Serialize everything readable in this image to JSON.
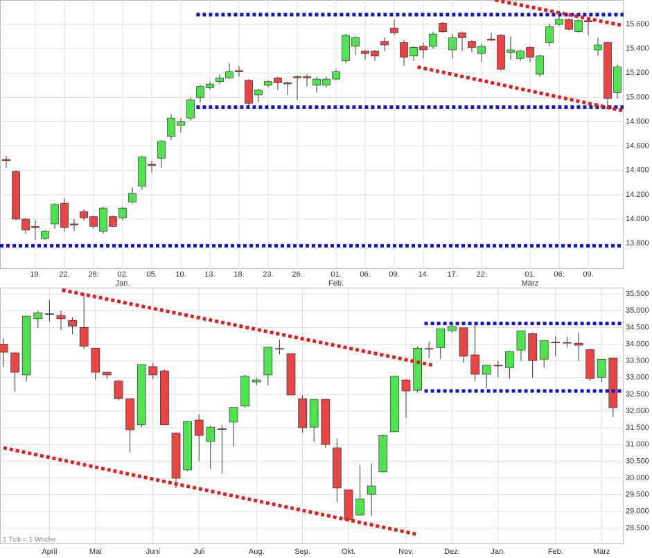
{
  "chart_data": [
    {
      "type": "candlestick",
      "categories": [
        null,
        null,
        null,
        "19.",
        null,
        null,
        "22.",
        null,
        null,
        "28.",
        null,
        null,
        "02.",
        null,
        null,
        "05.",
        null,
        null,
        "10.",
        null,
        null,
        "13.",
        null,
        null,
        "18.",
        null,
        null,
        "23.",
        null,
        null,
        "26.",
        null,
        null,
        null,
        "01.",
        null,
        null,
        "06.",
        null,
        null,
        "09.",
        null,
        null,
        "14.",
        null,
        null,
        "17.",
        null,
        null,
        "22.",
        null,
        null,
        null,
        null,
        "01.",
        null,
        null,
        "06.",
        null,
        null,
        "09.",
        null,
        null,
        null
      ],
      "month_labels": [
        {
          "index": 12,
          "label": "Jan."
        },
        {
          "index": 34,
          "label": "Feb."
        },
        {
          "index": 54,
          "label": "März"
        }
      ],
      "ohlc": [
        [
          14490,
          14520,
          14420,
          14480
        ],
        [
          14390,
          14400,
          13990,
          14000
        ],
        [
          14000,
          14010,
          13880,
          13910
        ],
        [
          13940,
          13990,
          13830,
          13930
        ],
        [
          13840,
          13910,
          13830,
          13900
        ],
        [
          13960,
          14130,
          13920,
          14120
        ],
        [
          14130,
          14170,
          13900,
          13930
        ],
        [
          13960,
          14000,
          13900,
          13950
        ],
        [
          14060,
          14080,
          13990,
          14010
        ],
        [
          14020,
          14030,
          13920,
          13940
        ],
        [
          13900,
          14100,
          13880,
          14090
        ],
        [
          14020,
          14030,
          13930,
          13940
        ],
        [
          14010,
          14100,
          13990,
          14090
        ],
        [
          14140,
          14260,
          14130,
          14210
        ],
        [
          14270,
          14520,
          14240,
          14510
        ],
        [
          14450,
          14480,
          14380,
          14440
        ],
        [
          14500,
          14650,
          14420,
          14640
        ],
        [
          14680,
          14860,
          14650,
          14830
        ],
        [
          14770,
          14830,
          14710,
          14800
        ],
        [
          14830,
          15000,
          14810,
          14980
        ],
        [
          15000,
          15100,
          14960,
          15090
        ],
        [
          15080,
          15130,
          15060,
          15110
        ],
        [
          15130,
          15190,
          15110,
          15160
        ],
        [
          15160,
          15280,
          15150,
          15210
        ],
        [
          15220,
          15260,
          15170,
          15210
        ],
        [
          15140,
          15150,
          14930,
          14950
        ],
        [
          15020,
          15070,
          14960,
          15060
        ],
        [
          15100,
          15140,
          15080,
          15130
        ],
        [
          15160,
          15170,
          15060,
          15120
        ],
        [
          15120,
          15130,
          15020,
          15110
        ],
        [
          15170,
          15180,
          14980,
          15160
        ],
        [
          15170,
          15190,
          15090,
          15160
        ],
        [
          15100,
          15170,
          15040,
          15150
        ],
        [
          15100,
          15170,
          15080,
          15150
        ],
        [
          15150,
          15230,
          15140,
          15210
        ],
        [
          15300,
          15520,
          15280,
          15510
        ],
        [
          15420,
          15500,
          15350,
          15490
        ],
        [
          15380,
          15390,
          15310,
          15360
        ],
        [
          15380,
          15390,
          15300,
          15340
        ],
        [
          15460,
          15490,
          15380,
          15430
        ],
        [
          15570,
          15640,
          15510,
          15530
        ],
        [
          15450,
          15470,
          15260,
          15330
        ],
        [
          15340,
          15420,
          15300,
          15410
        ],
        [
          15420,
          15450,
          15320,
          15390
        ],
        [
          15420,
          15540,
          15400,
          15520
        ],
        [
          15610,
          15620,
          15530,
          15540
        ],
        [
          15390,
          15520,
          15320,
          15490
        ],
        [
          15530,
          15540,
          15380,
          15490
        ],
        [
          15460,
          15470,
          15370,
          15410
        ],
        [
          15360,
          15440,
          15290,
          15420
        ],
        [
          15480,
          15530,
          15460,
          15470
        ],
        [
          15510,
          15520,
          15220,
          15230
        ],
        [
          15370,
          15500,
          15310,
          15390
        ],
        [
          15320,
          15390,
          15300,
          15380
        ],
        [
          15410,
          15420,
          15290,
          15330
        ],
        [
          15190,
          15350,
          15170,
          15340
        ],
        [
          15450,
          15600,
          15420,
          15580
        ],
        [
          15600,
          15670,
          15590,
          15640
        ],
        [
          15640,
          15650,
          15550,
          15560
        ],
        [
          15540,
          15640,
          15530,
          15630
        ],
        [
          15630,
          15640,
          15510,
          15620
        ],
        [
          15390,
          15490,
          15340,
          15430
        ],
        [
          15450,
          15460,
          14930,
          14990
        ],
        [
          15040,
          15270,
          14990,
          15250
        ]
      ],
      "up_color": "#4ee34e",
      "down_color": "#e84545",
      "ylim": [
        13590,
        15800
      ],
      "yticks": [
        {
          "value": 13800,
          "label": "13.800"
        },
        {
          "value": 14000,
          "label": "14.000"
        },
        {
          "value": 14200,
          "label": "14.200"
        },
        {
          "value": 14400,
          "label": "14.400"
        },
        {
          "value": 14600,
          "label": "14.600"
        },
        {
          "value": 14800,
          "label": "14.800"
        },
        {
          "value": 15000,
          "label": "15.000"
        },
        {
          "value": 15200,
          "label": "15.200"
        },
        {
          "value": 15400,
          "label": "15.400"
        },
        {
          "value": 15600,
          "label": "15.600"
        }
      ],
      "grid": true,
      "levels": [
        {
          "value": 13780,
          "start": -0.7,
          "color": "#1414c8"
        },
        {
          "value": 14920,
          "start": 19.6,
          "color": "#1414c8"
        },
        {
          "value": 15680,
          "start": 19.6,
          "color": "#1414c8"
        }
      ],
      "trendlines": [
        {
          "points": [
            [
              50.4,
              15800
            ],
            [
              63.6,
              15590
            ]
          ],
          "color": "#e02020"
        },
        {
          "points": [
            [
              42.4,
              15250
            ],
            [
              63.6,
              14890
            ]
          ],
          "color": "#e02020"
        }
      ]
    },
    {
      "type": "candlestick",
      "categories": [
        null,
        null,
        null,
        null,
        "April",
        null,
        null,
        null,
        "Mai",
        null,
        null,
        null,
        null,
        "Juni",
        null,
        null,
        null,
        "Juli",
        null,
        null,
        null,
        null,
        "Aug.",
        null,
        null,
        null,
        "Sep.",
        null,
        null,
        null,
        "Okt.",
        null,
        null,
        null,
        null,
        "Nov.",
        null,
        null,
        null,
        "Dez.",
        null,
        null,
        null,
        "Jan.",
        null,
        null,
        null,
        null,
        "Feb.",
        null,
        null,
        null,
        "März",
        null
      ],
      "ohlc": [
        [
          34000,
          34180,
          33320,
          33760
        ],
        [
          33740,
          33760,
          32580,
          33160
        ],
        [
          33080,
          34850,
          32880,
          34840
        ],
        [
          34760,
          35000,
          34490,
          34940
        ],
        [
          34910,
          35330,
          34680,
          34900
        ],
        [
          34860,
          35010,
          34430,
          34760
        ],
        [
          34710,
          34800,
          34300,
          34540
        ],
        [
          34500,
          35490,
          33860,
          33940
        ],
        [
          33880,
          33890,
          32940,
          33160
        ],
        [
          33160,
          33180,
          32960,
          33080
        ],
        [
          32900,
          32920,
          32320,
          32370
        ],
        [
          32370,
          32380,
          30760,
          31440
        ],
        [
          31590,
          33400,
          31520,
          33390
        ],
        [
          33330,
          33440,
          32960,
          33080
        ],
        [
          33200,
          33240,
          31580,
          31590
        ],
        [
          31340,
          31360,
          29700,
          29990
        ],
        [
          30240,
          31700,
          30200,
          31690
        ],
        [
          31730,
          31900,
          30510,
          31270
        ],
        [
          31090,
          31560,
          30270,
          31520
        ],
        [
          31470,
          31580,
          30120,
          31460
        ],
        [
          31670,
          32120,
          30940,
          32110
        ],
        [
          32150,
          33080,
          32100,
          33040
        ],
        [
          32870,
          33000,
          32780,
          32930
        ],
        [
          33080,
          33920,
          32770,
          33910
        ],
        [
          33870,
          34130,
          33700,
          33860
        ],
        [
          33720,
          33730,
          32470,
          32480
        ],
        [
          32370,
          32470,
          31350,
          31500
        ],
        [
          31520,
          32360,
          31080,
          32350
        ],
        [
          32350,
          32360,
          30900,
          31000
        ],
        [
          30900,
          31180,
          29280,
          29700
        ],
        [
          29640,
          29640,
          28700,
          28750
        ],
        [
          28890,
          30380,
          28880,
          29370
        ],
        [
          29510,
          30430,
          28870,
          29760
        ],
        [
          30180,
          31290,
          30160,
          31270
        ],
        [
          31380,
          33060,
          31370,
          33040
        ],
        [
          32930,
          32950,
          31800,
          32600
        ],
        [
          32620,
          33930,
          32560,
          33880
        ],
        [
          33870,
          34070,
          33580,
          33860
        ],
        [
          33900,
          34470,
          33550,
          34460
        ],
        [
          34400,
          34590,
          34350,
          34530
        ],
        [
          34490,
          34500,
          33430,
          33640
        ],
        [
          33680,
          34590,
          32890,
          33100
        ],
        [
          33100,
          33380,
          32690,
          33370
        ],
        [
          33370,
          33500,
          33010,
          33360
        ],
        [
          33300,
          33790,
          32970,
          33780
        ],
        [
          33820,
          34410,
          33500,
          34400
        ],
        [
          34320,
          34350,
          33000,
          33510
        ],
        [
          33550,
          34120,
          33300,
          34110
        ],
        [
          34060,
          34230,
          33640,
          34050
        ],
        [
          34050,
          34220,
          33900,
          34040
        ],
        [
          34030,
          34350,
          33500,
          33970
        ],
        [
          33840,
          33860,
          32900,
          32970
        ],
        [
          33010,
          33560,
          32870,
          33550
        ],
        [
          33590,
          33600,
          31820,
          32100
        ]
      ],
      "up_color": "#4ee34e",
      "down_color": "#e84545",
      "ylim": [
        28020,
        35690
      ],
      "yticks": [
        {
          "value": 28500,
          "label": "28.500"
        },
        {
          "value": 29000,
          "label": "29.000"
        },
        {
          "value": 29500,
          "label": "29.500"
        },
        {
          "value": 30000,
          "label": "30.000"
        },
        {
          "value": 30500,
          "label": "30.500"
        },
        {
          "value": 31000,
          "label": "31.000"
        },
        {
          "value": 31500,
          "label": "31.500"
        },
        {
          "value": 32000,
          "label": "32.000"
        },
        {
          "value": 32500,
          "label": "32.500"
        },
        {
          "value": 33000,
          "label": "33.000"
        },
        {
          "value": 33500,
          "label": "33.500"
        },
        {
          "value": 34000,
          "label": "34.000"
        },
        {
          "value": 34500,
          "label": "34.500"
        },
        {
          "value": 35000,
          "label": "35.000"
        },
        {
          "value": 35500,
          "label": "35.500"
        }
      ],
      "grid": true,
      "levels": [
        {
          "value": 34620,
          "start": 36.6,
          "color": "#1414c8"
        },
        {
          "value": 32600,
          "start": 36.6,
          "color": "#1414c8"
        }
      ],
      "trendlines": [
        {
          "points": [
            [
              5.1,
              35620
            ],
            [
              37.35,
              33370
            ]
          ],
          "color": "#e02020"
        },
        {
          "points": [
            [
              0,
              30900
            ],
            [
              36,
              28310
            ]
          ],
          "color": "#e02020"
        }
      ],
      "note": "1 Tick = 1 Woche"
    }
  ]
}
